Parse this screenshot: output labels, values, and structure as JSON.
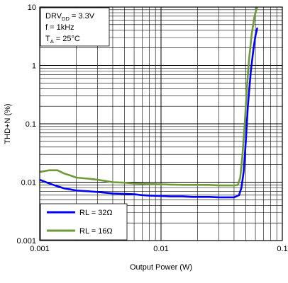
{
  "chart_data": {
    "type": "line",
    "xlabel": "Output Power (W)",
    "ylabel": "THD+N (%)",
    "x_scale": "log",
    "y_scale": "log",
    "xlim": [
      0.001,
      0.1
    ],
    "ylim": [
      0.001,
      10
    ],
    "x_ticks": [
      0.001,
      0.01,
      0.1
    ],
    "x_tick_labels": [
      "0.001",
      "0.01",
      "0.1"
    ],
    "y_ticks": [
      0.001,
      0.01,
      0.1,
      1,
      10
    ],
    "y_tick_labels": [
      "0.001",
      "0.01",
      "0.1",
      "1",
      "10"
    ],
    "grid": true,
    "legend_position": "bottom-left",
    "annotation": {
      "line1_main": "DRV",
      "line1_sub": "DD",
      "line1_rest": " = 3.3V",
      "line2": "f = 1kHz",
      "line3_main": "T",
      "line3_sub": "A",
      "line3_rest": " = 25°C"
    },
    "series": [
      {
        "name": "RL = 32Ω",
        "color": "#0000ff",
        "x": [
          0.001,
          0.0012,
          0.0014,
          0.0016,
          0.0018,
          0.002,
          0.0025,
          0.003,
          0.0035,
          0.004,
          0.005,
          0.006,
          0.007,
          0.008,
          0.01,
          0.012,
          0.015,
          0.018,
          0.02,
          0.025,
          0.03,
          0.035,
          0.04,
          0.044,
          0.046,
          0.048,
          0.05,
          0.052,
          0.055,
          0.058,
          0.06,
          0.062
        ],
        "y": [
          0.011,
          0.0095,
          0.0085,
          0.0078,
          0.0075,
          0.0072,
          0.007,
          0.0068,
          0.0066,
          0.0064,
          0.0063,
          0.0062,
          0.006,
          0.0059,
          0.0058,
          0.0057,
          0.0057,
          0.0056,
          0.0056,
          0.0056,
          0.0055,
          0.0055,
          0.0055,
          0.006,
          0.008,
          0.015,
          0.05,
          0.2,
          0.8,
          2.0,
          3.2,
          4.3
        ]
      },
      {
        "name": "RL = 16Ω",
        "color": "#6e9a3a",
        "x": [
          0.001,
          0.0012,
          0.0014,
          0.0016,
          0.0018,
          0.002,
          0.0025,
          0.003,
          0.0035,
          0.004,
          0.005,
          0.006,
          0.007,
          0.008,
          0.01,
          0.012,
          0.015,
          0.018,
          0.02,
          0.025,
          0.03,
          0.035,
          0.04,
          0.043,
          0.045,
          0.047,
          0.049,
          0.051,
          0.053,
          0.056,
          0.059,
          0.062
        ],
        "y": [
          0.015,
          0.016,
          0.016,
          0.014,
          0.013,
          0.012,
          0.0115,
          0.011,
          0.0105,
          0.01,
          0.0098,
          0.0095,
          0.0094,
          0.0093,
          0.0092,
          0.0091,
          0.009,
          0.009,
          0.009,
          0.009,
          0.0088,
          0.0088,
          0.0088,
          0.009,
          0.012,
          0.03,
          0.1,
          0.4,
          1.2,
          3.5,
          7.0,
          10.0
        ]
      }
    ]
  }
}
